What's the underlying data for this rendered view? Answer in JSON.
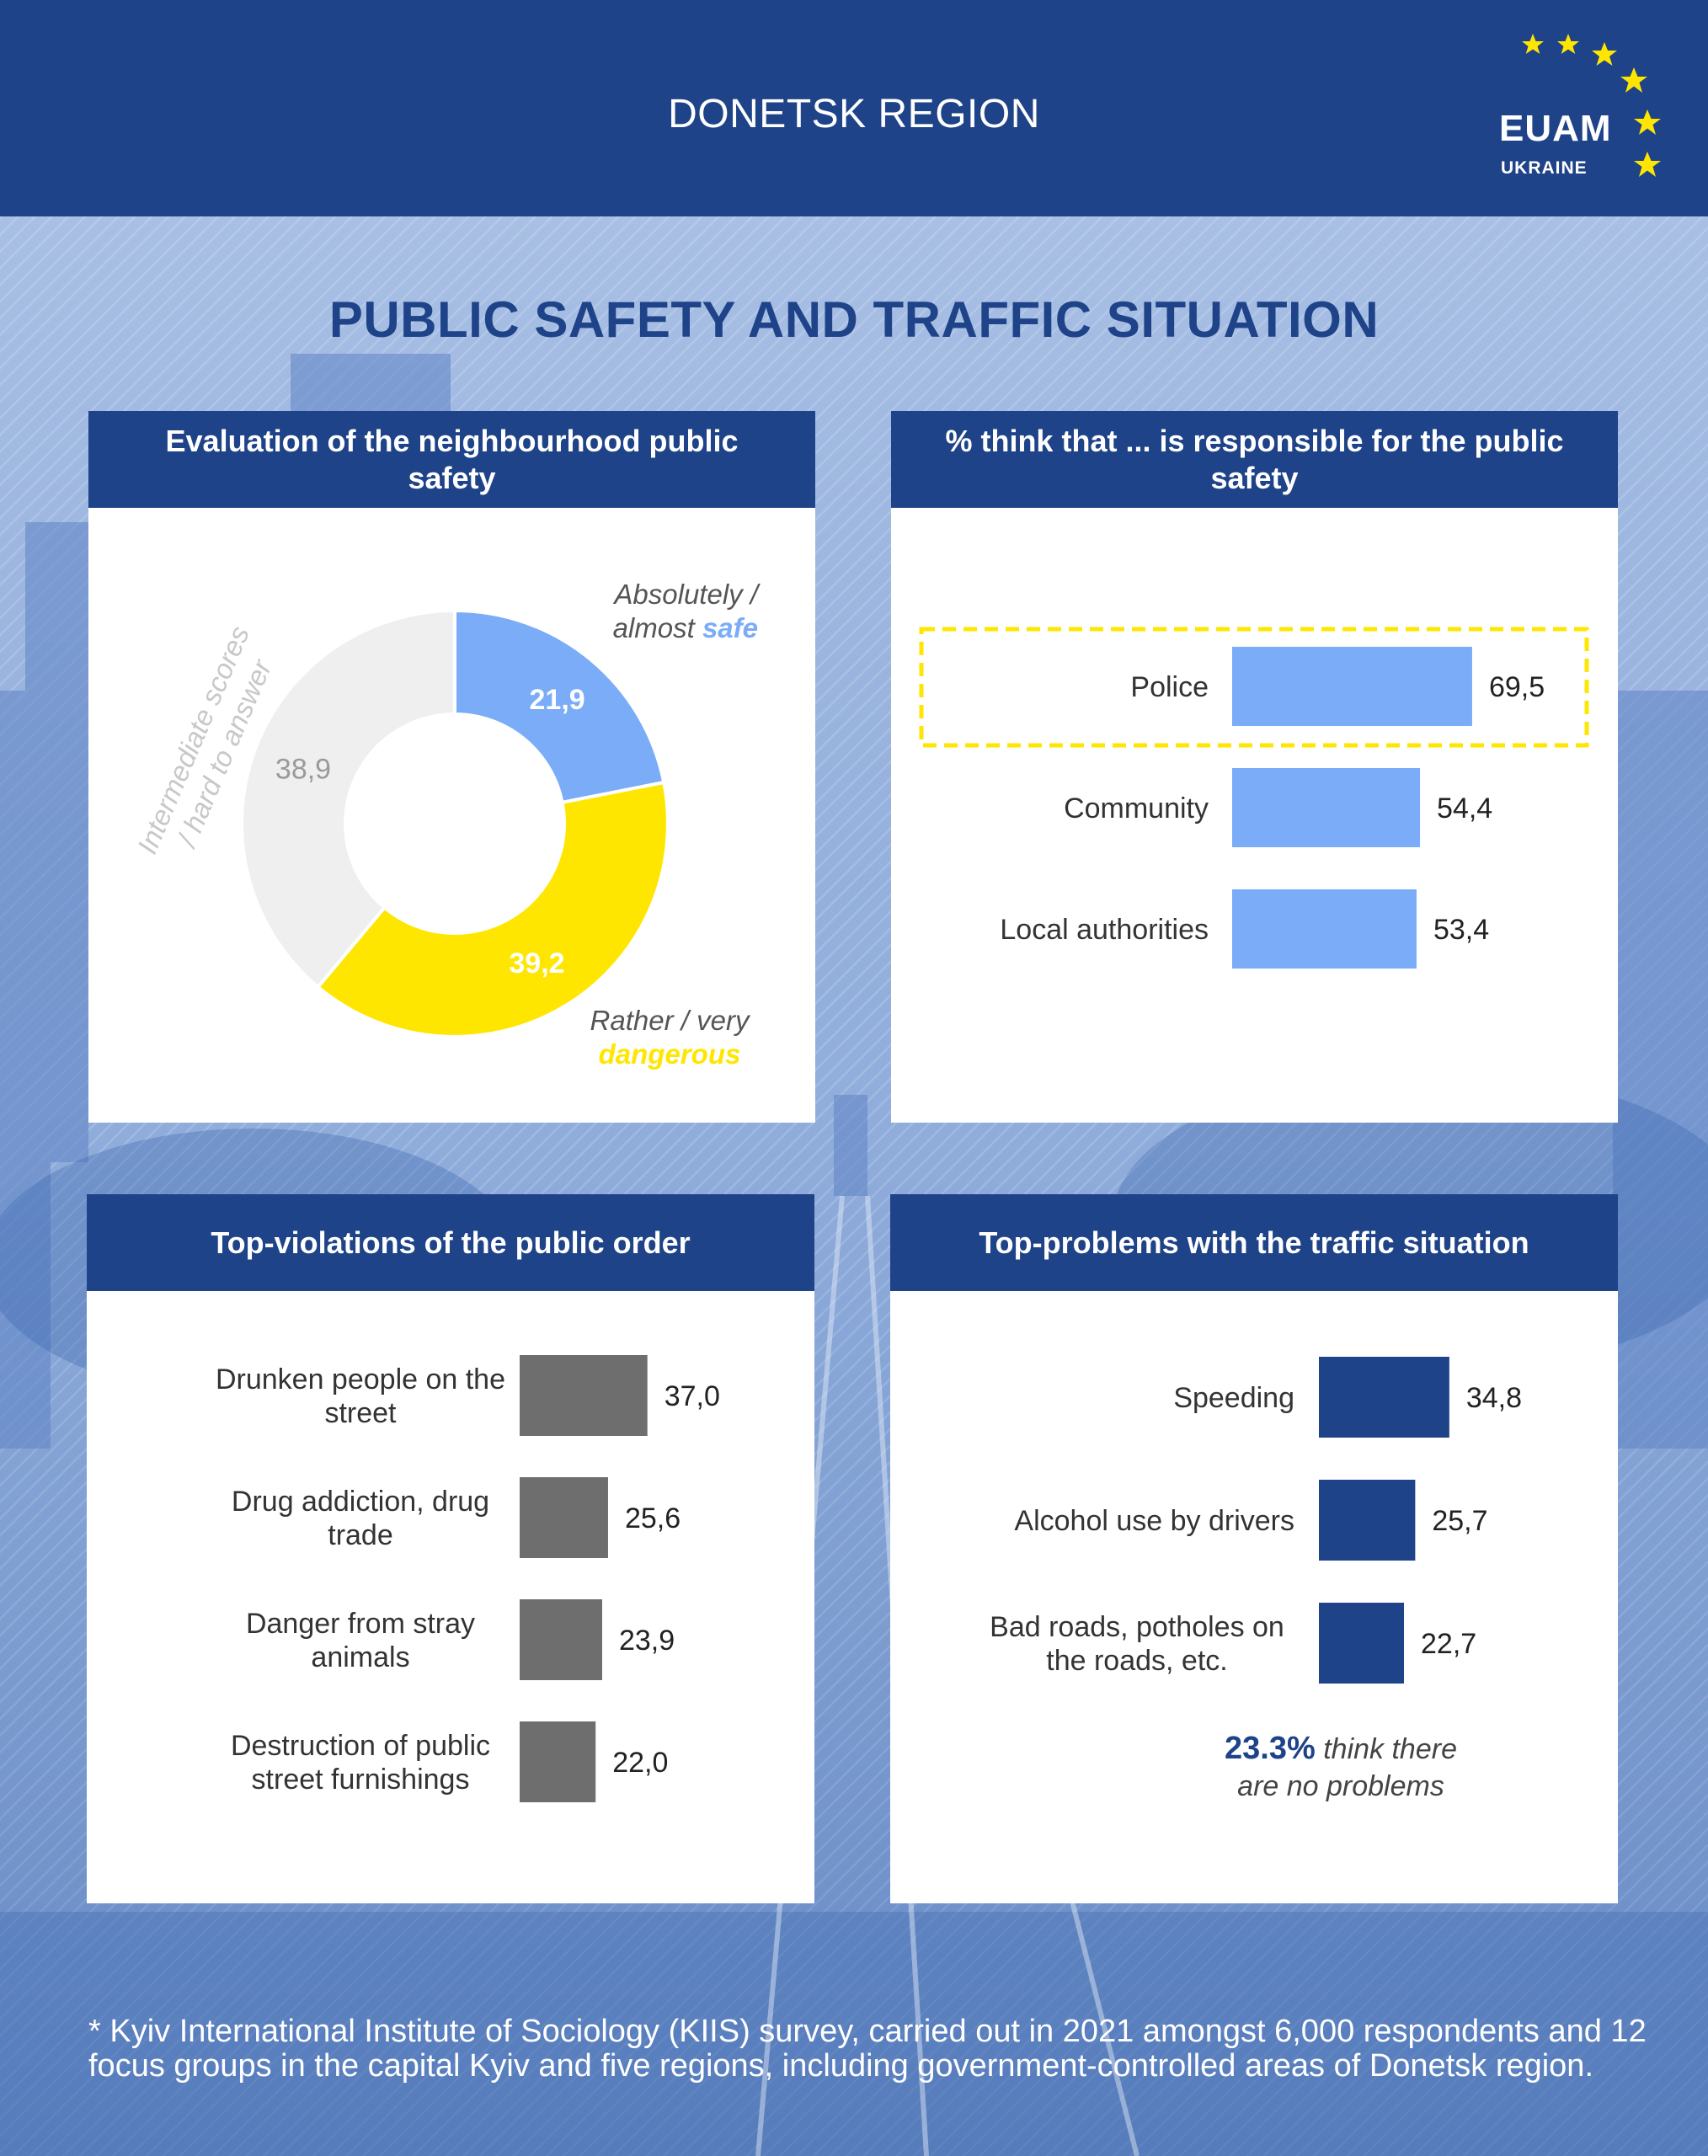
{
  "header": {
    "region": "DONETSK REGION",
    "logo_name": "EUAM",
    "logo_sub": "UKRAINE"
  },
  "page_title": "PUBLIC SAFETY AND TRAFFIC SITUATION",
  "colors": {
    "dark_blue": "#1f4388",
    "light_blue": "#7aacf7",
    "yellow": "#ffe600",
    "grey_bar": "#6e6e6e",
    "light_grey": "#efefef"
  },
  "panels": {
    "p1_title": "Evaluation of the neighbourhood public safety",
    "p2_title": "% think that ... is responsible for the public safety",
    "p3_title": "Top-violations of the public order",
    "p4_title": "Top-problems with the traffic situation"
  },
  "chart_data": [
    {
      "type": "pie",
      "title": "Evaluation of the neighbourhood public safety",
      "slices": [
        {
          "value": 21.9,
          "display": "21,9",
          "label_lines": [
            "Absolutely /",
            "almost "
          ],
          "label_highlight": "safe",
          "color": "#7aacf7"
        },
        {
          "value": 39.2,
          "display": "39,2",
          "label_lines": [
            "Rather / very"
          ],
          "label_highlight": "dangerous",
          "color": "#ffe600"
        },
        {
          "value": 38.9,
          "display": "38,9",
          "label_lines": [
            "Intermediate scores",
            "/ hard to answer"
          ],
          "label_highlight": "",
          "color": "#efefef"
        }
      ]
    },
    {
      "type": "bar",
      "orientation": "horizontal",
      "title": "% think that ... is responsible for the public safety",
      "categories": [
        [
          "Police"
        ],
        [
          "Community"
        ],
        [
          "Local authorities"
        ]
      ],
      "values": [
        69.5,
        54.4,
        53.4
      ],
      "display": [
        "69,5",
        "54,4",
        "53,4"
      ],
      "highlighted": "Police",
      "color": "#7aacf7"
    },
    {
      "type": "bar",
      "orientation": "horizontal",
      "title": "Top-violations of the public order",
      "categories": [
        [
          "Drunken people on the",
          "street"
        ],
        [
          "Drug addiction, drug",
          "trade"
        ],
        [
          "Danger from stray",
          "animals"
        ],
        [
          "Destruction of public",
          "street furnishings"
        ]
      ],
      "values": [
        37.0,
        25.6,
        23.9,
        22.0
      ],
      "display": [
        "37,0",
        "25,6",
        "23,9",
        "22,0"
      ],
      "color": "#6e6e6e"
    },
    {
      "type": "bar",
      "orientation": "horizontal",
      "title": "Top-problems with the traffic situation",
      "categories": [
        [
          "Speeding"
        ],
        [
          "Alcohol use by drivers"
        ],
        [
          "Bad roads, potholes on",
          "the roads, etc."
        ]
      ],
      "values": [
        34.8,
        25.7,
        22.7
      ],
      "display": [
        "34,8",
        "25,7",
        "22,7"
      ],
      "color": "#1f4388",
      "note_bold": "23.3%",
      "note_lines": [
        " think there",
        "are no problems"
      ]
    }
  ],
  "footnote": "* Kyiv International Institute of Sociology (KIIS) survey, carried out in 2021 amongst 6,000 respondents and 12 focus groups in the capital Kyiv and five regions, including government-controlled areas of Donetsk region."
}
